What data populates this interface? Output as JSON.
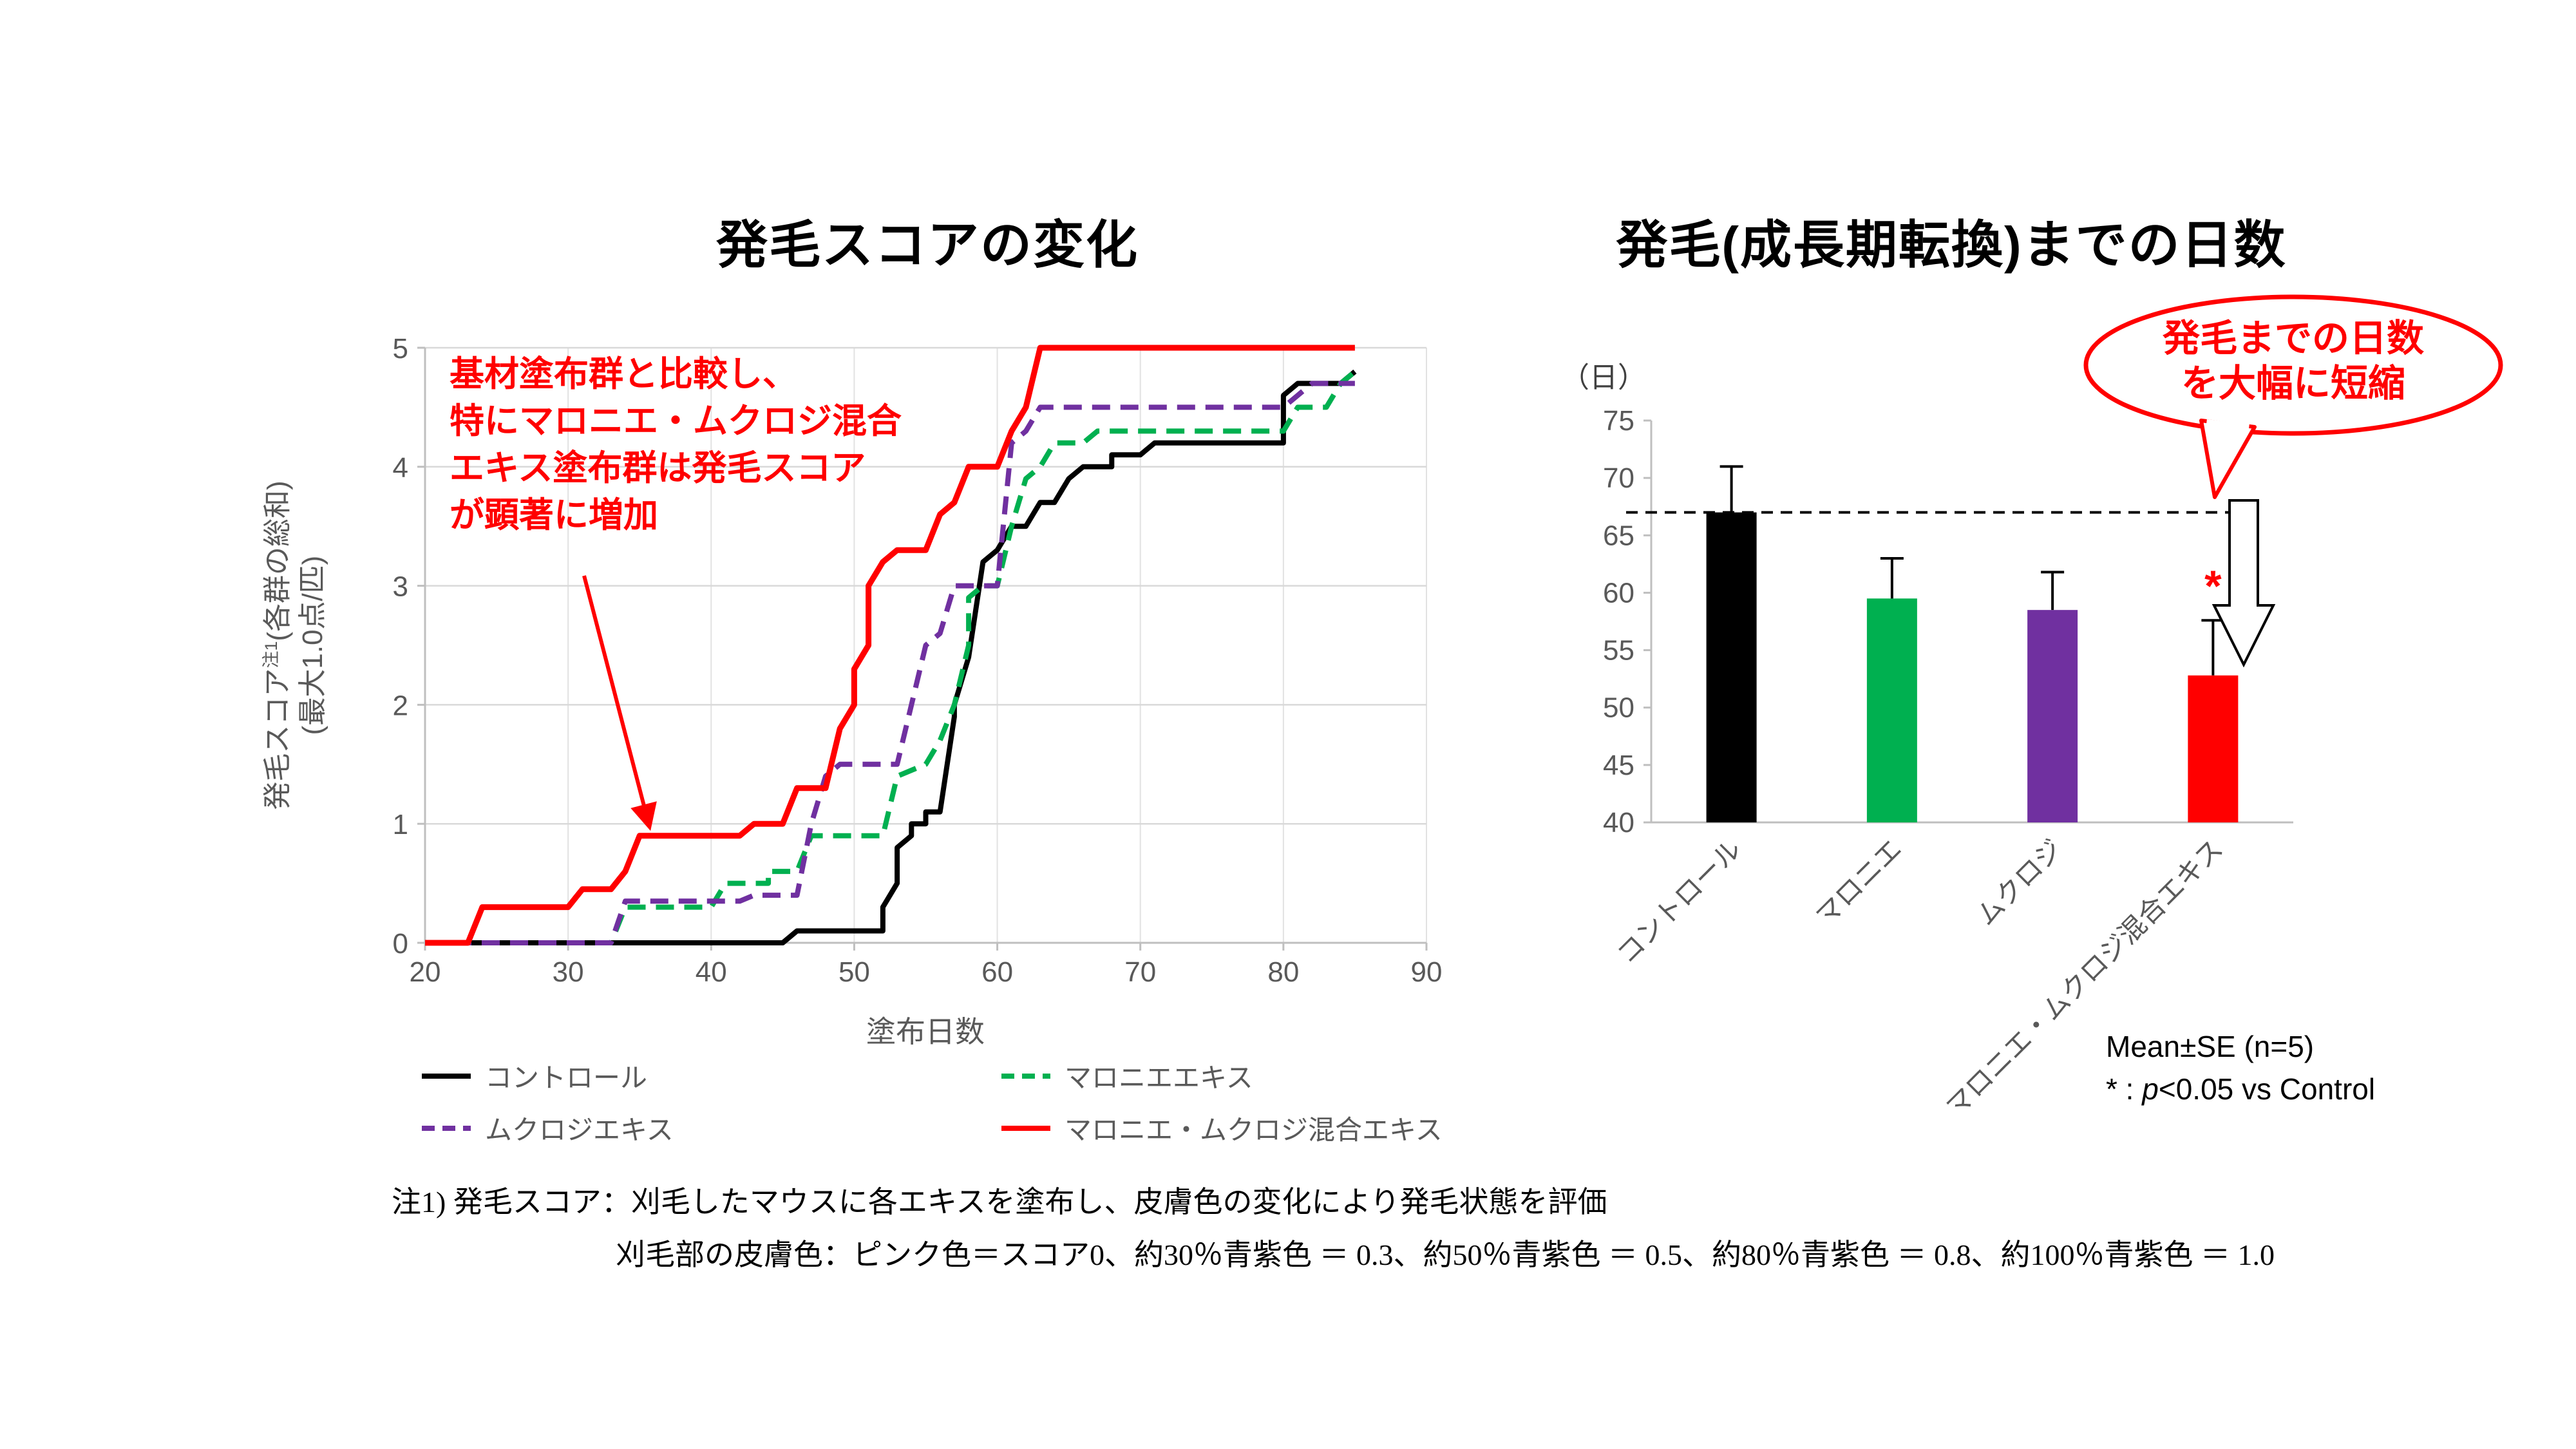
{
  "left_chart": {
    "title": "発毛スコアの変化",
    "xlabel": "塗布日数",
    "ylabel": {
      "main": "発毛スコア",
      "sup": "注1",
      "paren": "(各群の総和)",
      "line2": "(最大1.0点/匹)"
    },
    "annotation": {
      "color": "#FF0000",
      "lines": [
        "基材塗布群と比較し、",
        "特にマロニエ・ムクロジ混合",
        "エキス塗布群は発毛スコア",
        "が顕著に増加"
      ]
    }
  },
  "right_chart": {
    "title": "発毛(成長期転換)までの日数",
    "unit_label": "（日）",
    "callout": {
      "line1": "発毛までの日数",
      "line2": "を大幅に短縮"
    },
    "stats_note": "Mean±SE (n=5)",
    "sig_note": {
      "prefix": "* : ",
      "p": "p",
      "rest": "<0.05 vs Control"
    }
  },
  "footnotes": {
    "line1": "注1) 発毛スコア：刈毛したマウスに各エキスを塗布し、皮膚色の変化により発毛状態を評価",
    "line2": "刈毛部の皮膚色：ピンク色＝スコア0、約30％青紫色 ＝ 0.3、約50％青紫色 ＝ 0.5、約80％青紫色 ＝ 0.8、約100％青紫色 ＝ 1.0"
  },
  "chart_data": [
    {
      "type": "line",
      "title": "発毛スコアの変化",
      "xlabel": "塗布日数",
      "ylabel": "発毛スコア注1(各群の総和)(最大1.0点/匹)",
      "xlim": [
        20,
        90
      ],
      "ylim": [
        0,
        5
      ],
      "xticks": [
        20,
        30,
        40,
        50,
        60,
        70,
        80,
        90
      ],
      "yticks": [
        0,
        1,
        2,
        3,
        4,
        5
      ],
      "grid": true,
      "legend_position": "bottom",
      "series": [
        {
          "name": "コントロール",
          "color": "#000000",
          "style": "solid",
          "points": [
            [
              20,
              0
            ],
            [
              45,
              0
            ],
            [
              46,
              0.1
            ],
            [
              52,
              0.1
            ],
            [
              52,
              0.3
            ],
            [
              53,
              0.5
            ],
            [
              53,
              0.8
            ],
            [
              54,
              0.9
            ],
            [
              54,
              1
            ],
            [
              55,
              1
            ],
            [
              55,
              1.1
            ],
            [
              56,
              1.1
            ],
            [
              57,
              1.9
            ],
            [
              57,
              2
            ],
            [
              58,
              2.4
            ],
            [
              59,
              3.2
            ],
            [
              60,
              3.3
            ],
            [
              61,
              3.5
            ],
            [
              62,
              3.5
            ],
            [
              63,
              3.7
            ],
            [
              64,
              3.7
            ],
            [
              65,
              3.9
            ],
            [
              66,
              4
            ],
            [
              68,
              4
            ],
            [
              68,
              4.1
            ],
            [
              70,
              4.1
            ],
            [
              71,
              4.2
            ],
            [
              80,
              4.2
            ],
            [
              80,
              4.6
            ],
            [
              81,
              4.7
            ],
            [
              84,
              4.7
            ],
            [
              85,
              4.8
            ]
          ]
        },
        {
          "name": "マロニエエキス",
          "color": "#00B050",
          "style": "dashed",
          "points": [
            [
              20,
              0
            ],
            [
              33,
              0
            ],
            [
              34,
              0.3
            ],
            [
              40,
              0.3
            ],
            [
              41,
              0.5
            ],
            [
              44,
              0.5
            ],
            [
              44,
              0.6
            ],
            [
              46,
              0.6
            ],
            [
              47,
              0.9
            ],
            [
              52,
              0.9
            ],
            [
              53,
              1.4
            ],
            [
              55,
              1.5
            ],
            [
              56,
              1.7
            ],
            [
              57,
              2
            ],
            [
              58,
              2.5
            ],
            [
              58,
              2.9
            ],
            [
              59,
              3
            ],
            [
              60,
              3
            ],
            [
              61,
              3.5
            ],
            [
              62,
              3.9
            ],
            [
              63,
              4
            ],
            [
              64,
              4.2
            ],
            [
              66,
              4.2
            ],
            [
              67,
              4.3
            ],
            [
              80,
              4.3
            ],
            [
              81,
              4.5
            ],
            [
              83,
              4.5
            ],
            [
              84,
              4.7
            ],
            [
              85,
              4.8
            ]
          ]
        },
        {
          "name": "ムクロジエキス",
          "color": "#7030A0",
          "style": "dashed",
          "points": [
            [
              20,
              0
            ],
            [
              33,
              0
            ],
            [
              34,
              0.35
            ],
            [
              42,
              0.35
            ],
            [
              43,
              0.4
            ],
            [
              46,
              0.4
            ],
            [
              47,
              1
            ],
            [
              48,
              1.4
            ],
            [
              49,
              1.5
            ],
            [
              53,
              1.5
            ],
            [
              54,
              2
            ],
            [
              55,
              2.5
            ],
            [
              56,
              2.6
            ],
            [
              57,
              3
            ],
            [
              60,
              3
            ],
            [
              61,
              4.2
            ],
            [
              62,
              4.3
            ],
            [
              63,
              4.5
            ],
            [
              80,
              4.5
            ],
            [
              81,
              4.6
            ],
            [
              82,
              4.7
            ],
            [
              85,
              4.7
            ]
          ]
        },
        {
          "name": "マロニエ・ムクロジ混合エキス",
          "color": "#FF0000",
          "style": "solid",
          "points": [
            [
              20,
              0
            ],
            [
              23,
              0
            ],
            [
              24,
              0.3
            ],
            [
              30,
              0.3
            ],
            [
              31,
              0.45
            ],
            [
              33,
              0.45
            ],
            [
              34,
              0.6
            ],
            [
              35,
              0.9
            ],
            [
              42,
              0.9
            ],
            [
              43,
              1
            ],
            [
              45,
              1
            ],
            [
              46,
              1.3
            ],
            [
              48,
              1.3
            ],
            [
              49,
              1.8
            ],
            [
              50,
              2
            ],
            [
              50,
              2.3
            ],
            [
              51,
              2.5
            ],
            [
              51,
              3
            ],
            [
              52,
              3.2
            ],
            [
              53,
              3.3
            ],
            [
              55,
              3.3
            ],
            [
              56,
              3.6
            ],
            [
              57,
              3.7
            ],
            [
              58,
              4
            ],
            [
              60,
              4
            ],
            [
              61,
              4.3
            ],
            [
              62,
              4.5
            ],
            [
              63,
              5
            ],
            [
              85,
              5
            ]
          ]
        }
      ]
    },
    {
      "type": "bar",
      "title": "発毛(成長期転換)までの日数",
      "ylabel": "（日）",
      "ylim": [
        40,
        75
      ],
      "yticks": [
        40,
        45,
        50,
        55,
        60,
        65,
        70,
        75
      ],
      "grid": false,
      "categories": [
        "コントロール",
        "マロニエ",
        "ムクロジ",
        "マロニエ・ムクロジ混合エキス"
      ],
      "values": [
        67,
        59.5,
        58.5,
        52.8
      ],
      "errors": [
        4,
        3.5,
        3.3,
        4.8
      ],
      "colors": [
        "#000000",
        "#00B050",
        "#7030A0",
        "#FF0000"
      ],
      "reference_line": 67,
      "significance": {
        "bar_index": 3,
        "symbol": "*",
        "color": "#FF0000"
      }
    }
  ]
}
